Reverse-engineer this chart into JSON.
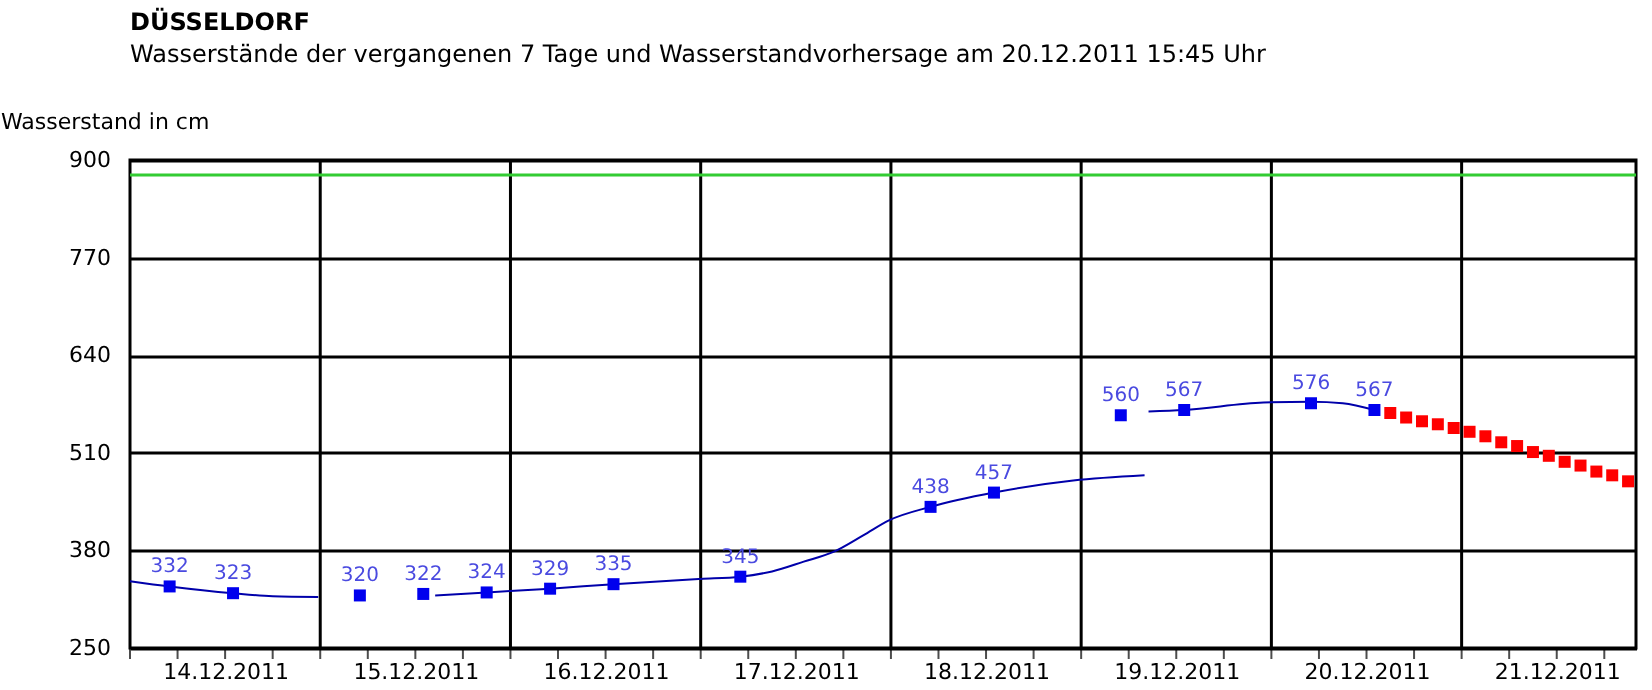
{
  "chart_data": {
    "type": "line",
    "title": "DÜSSELDORF",
    "subtitle": "Wasserstände der vergangenen 7 Tage und Wasserstandvorhersage am 20.12.2011 15:45 Uhr",
    "ylabel": "Wasserstand in cm",
    "xlim": [
      "2011-12-14T00:00",
      "2011-12-21T22:00"
    ],
    "xticks": [
      {
        "value": "2011-12-14T00:00",
        "label": null
      },
      {
        "value": "2011-12-14T06:00",
        "label": null
      },
      {
        "value": "2011-12-14T12:00",
        "label": "14.12.2011"
      },
      {
        "value": "2011-12-14T18:00",
        "label": null
      },
      {
        "value": "2011-12-15T00:00",
        "label": null
      },
      {
        "value": "2011-12-15T06:00",
        "label": null
      },
      {
        "value": "2011-12-15T12:00",
        "label": "15.12.2011"
      },
      {
        "value": "2011-12-15T18:00",
        "label": null
      },
      {
        "value": "2011-12-16T00:00",
        "label": null
      },
      {
        "value": "2011-12-16T06:00",
        "label": null
      },
      {
        "value": "2011-12-16T12:00",
        "label": "16.12.2011"
      },
      {
        "value": "2011-12-16T18:00",
        "label": null
      },
      {
        "value": "2011-12-17T00:00",
        "label": null
      },
      {
        "value": "2011-12-17T06:00",
        "label": null
      },
      {
        "value": "2011-12-17T12:00",
        "label": "17.12.2011"
      },
      {
        "value": "2011-12-17T18:00",
        "label": null
      },
      {
        "value": "2011-12-18T00:00",
        "label": null
      },
      {
        "value": "2011-12-18T06:00",
        "label": null
      },
      {
        "value": "2011-12-18T12:00",
        "label": "18.12.2011"
      },
      {
        "value": "2011-12-18T18:00",
        "label": null
      },
      {
        "value": "2011-12-19T00:00",
        "label": null
      },
      {
        "value": "2011-12-19T06:00",
        "label": null
      },
      {
        "value": "2011-12-19T12:00",
        "label": "19.12.2011"
      },
      {
        "value": "2011-12-19T18:00",
        "label": null
      },
      {
        "value": "2011-12-20T00:00",
        "label": null
      },
      {
        "value": "2011-12-20T06:00",
        "label": null
      },
      {
        "value": "2011-12-20T12:00",
        "label": "20.12.2011"
      },
      {
        "value": "2011-12-20T18:00",
        "label": null
      },
      {
        "value": "2011-12-21T00:00",
        "label": null
      },
      {
        "value": "2011-12-21T06:00",
        "label": null
      },
      {
        "value": "2011-12-21T12:00",
        "label": "21.12.2011"
      },
      {
        "value": "2011-12-21T18:00",
        "label": null
      }
    ],
    "ylim": [
      250,
      900
    ],
    "yticks": [
      250,
      380,
      510,
      640,
      770,
      900
    ],
    "grid": true,
    "ref_lines": [
      {
        "axis": "y",
        "value": 880,
        "color": "#33cc33"
      }
    ],
    "series": [
      {
        "type": "line",
        "color": "#0000aa",
        "marker": "none",
        "x": [
          "2011-12-14T00:00",
          "2011-12-14T05:00",
          "2011-12-14T13:00",
          "2011-12-14T18:00",
          "2011-12-14T23:45",
          "2011-12-15T06:00",
          "2011-12-15T14:30",
          "2011-12-15T21:00",
          "2011-12-16T05:00",
          "2011-12-16T13:00",
          "2011-12-17T00:00",
          "2011-12-17T05:00",
          "2011-12-17T09:00",
          "2011-12-17T13:00",
          "2011-12-17T16:45",
          "2011-12-17T20:30",
          "2011-12-17T23:45",
          "2011-12-18T05:00",
          "2011-12-18T13:00",
          "2011-12-18T23:00",
          "2011-12-19T08:00",
          "2011-12-19T08:15",
          "2011-12-19T08:30",
          "2011-12-19T13:00",
          "2011-12-19T23:00",
          "2011-12-20T05:00",
          "2011-12-20T09:00",
          "2011-12-20T13:00"
        ],
        "values": [
          339,
          332,
          323,
          319,
          318,
          null,
          320,
          324,
          329,
          335,
          342,
          345,
          352,
          365,
          378,
          400,
          420,
          438,
          457,
          473,
          480,
          null,
          565,
          567,
          577,
          578,
          576,
          567
        ]
      },
      {
        "type": "scatter",
        "color": "#0000ee",
        "marker": "square",
        "x": [
          "2011-12-14T05:00",
          "2011-12-14T13:00",
          "2011-12-15T05:00",
          "2011-12-15T13:00",
          "2011-12-15T21:00",
          "2011-12-16T05:00",
          "2011-12-16T13:00",
          "2011-12-17T05:00",
          "2011-12-18T05:00",
          "2011-12-18T13:00",
          "2011-12-19T05:00",
          "2011-12-19T13:00",
          "2011-12-20T05:00",
          "2011-12-20T13:00"
        ],
        "values": [
          332,
          323,
          320,
          322,
          324,
          329,
          335,
          345,
          438,
          457,
          560,
          567,
          576,
          567
        ],
        "value_labels": [
          "332",
          "323",
          "320",
          "322",
          "324",
          "329",
          "335",
          "345",
          "438",
          "457",
          "560",
          "567",
          "576",
          "567"
        ]
      },
      {
        "type": "scatter",
        "color": "#ff0000",
        "marker": "square",
        "x": [
          "2011-12-20T15:00",
          "2011-12-20T17:00",
          "2011-12-20T19:00",
          "2011-12-20T21:00",
          "2011-12-20T23:00",
          "2011-12-21T01:00",
          "2011-12-21T03:00",
          "2011-12-21T05:00",
          "2011-12-21T07:00",
          "2011-12-21T09:00",
          "2011-12-21T11:00",
          "2011-12-21T13:00",
          "2011-12-21T15:00",
          "2011-12-21T17:00",
          "2011-12-21T19:00",
          "2011-12-21T21:00"
        ],
        "values": [
          563,
          557,
          552,
          548,
          543,
          538,
          532,
          524,
          519,
          511,
          506,
          498,
          493,
          485,
          480,
          472
        ]
      }
    ]
  }
}
